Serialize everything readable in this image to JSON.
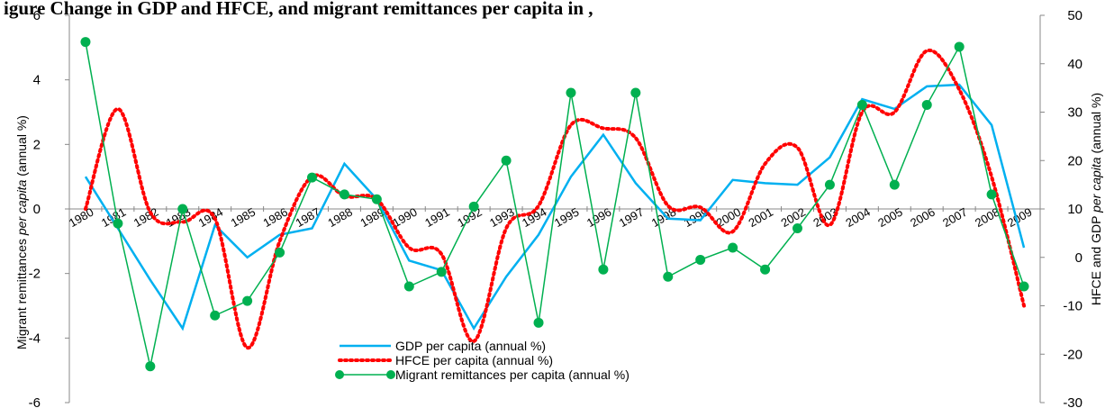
{
  "chart_data": {
    "type": "line",
    "title": "igure      Change in GDP and HFCE, and migrant remittances per capita in                                        ,",
    "y_left": {
      "label_prefix": "Migrant remittances ",
      "label_italic": "per capita",
      "label_suffix": " (annual %)",
      "lim": [
        -6,
        6
      ],
      "ticks": [
        -6,
        -4,
        -2,
        0,
        2,
        4,
        6
      ]
    },
    "y_right": {
      "label_prefix": "HFCE and GDP ",
      "label_italic": "per capita",
      "label_suffix": " (annual %)",
      "lim": [
        -30,
        50
      ],
      "ticks": [
        -30,
        -20,
        -10,
        0,
        10,
        20,
        30,
        40,
        50
      ]
    },
    "categories": [
      "1980",
      "1981",
      "1982",
      "1983",
      "1984",
      "1985",
      "1986",
      "1987",
      "1988",
      "1989",
      "1990",
      "1991",
      "1992",
      "1993",
      "1994",
      "1995",
      "1996",
      "1997",
      "1998",
      "1999",
      "2000",
      "2001",
      "2002",
      "2003",
      "2004",
      "2005",
      "2006",
      "2007",
      "2008",
      "2009"
    ],
    "series": [
      {
        "name": "GDP per capita (annual  %)",
        "axis": "left",
        "color": "#00b0f0",
        "style": "solid",
        "values": [
          1.0,
          -0.6,
          -2.2,
          -3.7,
          -0.5,
          -1.5,
          -0.8,
          -0.6,
          1.4,
          0.3,
          -1.6,
          -1.9,
          -3.7,
          -2.1,
          -0.8,
          1.0,
          2.3,
          0.8,
          -0.3,
          -0.35,
          0.9,
          0.8,
          0.75,
          1.6,
          3.4,
          3.1,
          3.8,
          3.85,
          2.6,
          -1.2
        ]
      },
      {
        "name": "HFCE per capita (annual  %)",
        "axis": "left",
        "color": "#ff0000",
        "style": "dotted",
        "values": [
          0.0,
          3.1,
          -0.1,
          -0.4,
          -0.3,
          -4.3,
          -1.0,
          1.0,
          0.4,
          0.3,
          -1.2,
          -1.4,
          -4.1,
          -0.6,
          0.1,
          2.6,
          2.5,
          2.2,
          0.1,
          0.05,
          -0.7,
          1.4,
          1.9,
          -0.5,
          3.0,
          3.0,
          4.9,
          3.7,
          1.0,
          -3.0
        ]
      },
      {
        "name": "Migrant remittances  per capita (annual  %)",
        "axis": "right",
        "color": "#00b050",
        "marker_color": "#00b050",
        "style": "solid-markers",
        "values": [
          44.5,
          7.0,
          -22.5,
          10.0,
          -12.0,
          -9.0,
          1.0,
          16.5,
          13.0,
          12.0,
          -6.0,
          -3.0,
          10.5,
          20.0,
          -13.5,
          34.0,
          -2.5,
          34.0,
          -4.0,
          -0.5,
          2.0,
          -2.5,
          6.0,
          15.0,
          31.5,
          15.0,
          31.5,
          43.5,
          13.0,
          -6.0
        ]
      }
    ],
    "grid": false,
    "legend_position": "bottom-center"
  }
}
